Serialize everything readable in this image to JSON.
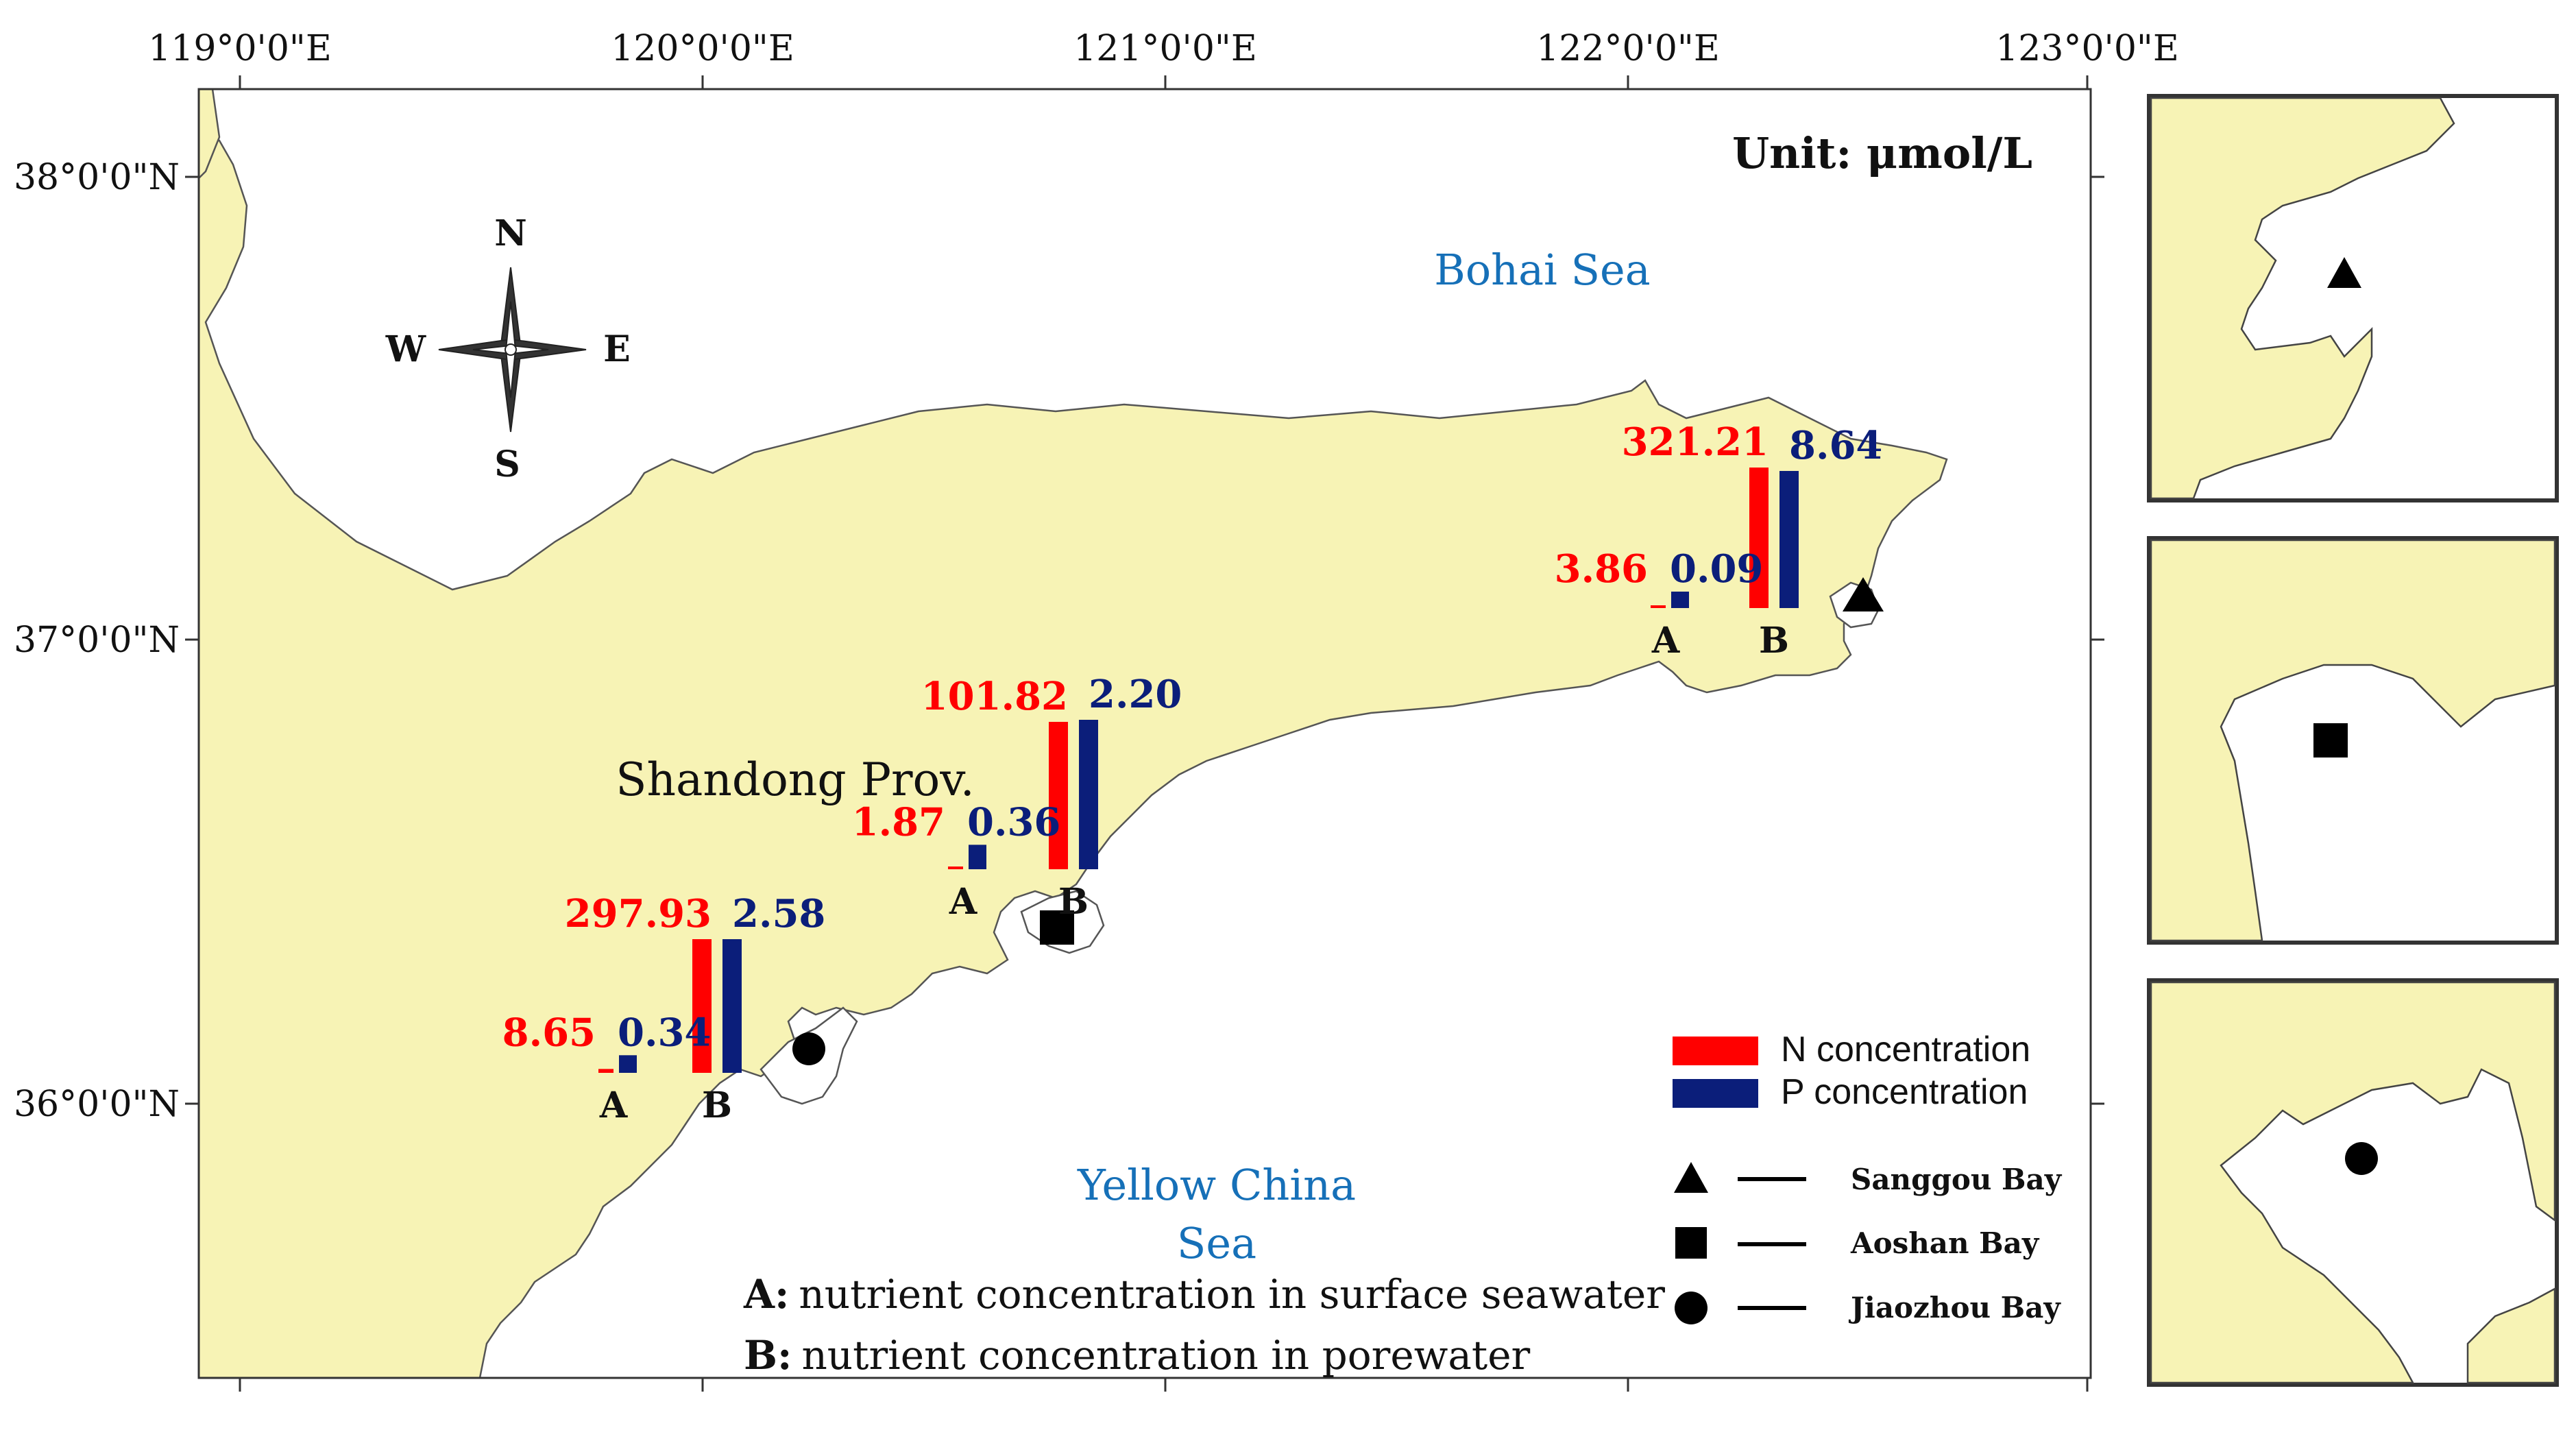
{
  "longitude_labels": [
    "119°0'0\"E",
    "120°0'0\"E",
    "121°0'0\"E",
    "122°0'0\"E",
    "123°0'0\"E"
  ],
  "latitude_labels": [
    "38°0'0\"N",
    "37°0'0\"N",
    "36°0'0\"N"
  ],
  "unit_label": "Unit: μmol/L",
  "compass": {
    "n": "N",
    "s": "S",
    "e": "E",
    "w": "W"
  },
  "place_labels": {
    "bohai_sea": "Bohai Sea",
    "shandong": "Shandong Prov.",
    "yellow_sea_line1": "Yellow China",
    "yellow_sea_line2": "Sea"
  },
  "colors": {
    "land": "#f7f3b5",
    "n_bar": "#ff0000",
    "p_bar": "#0b1e7a",
    "water_label": "#1670b8",
    "n_text": "#ff0000",
    "p_text": "#0b1e7a"
  },
  "legend": {
    "n_concentration": "N concentration",
    "p_concentration": "P concentration",
    "sites": [
      {
        "symbol": "triangle",
        "name": "Sanggou Bay"
      },
      {
        "symbol": "square",
        "name": "Aoshan Bay"
      },
      {
        "symbol": "circle",
        "name": "Jiaozhou Bay"
      }
    ]
  },
  "notes": {
    "a_key": "A:",
    "a_text": "nutrient concentration in surface seawater",
    "b_key": "B:",
    "b_text": "nutrient concentration in porewater"
  },
  "chart_data": {
    "type": "bar",
    "categories": [
      "A",
      "B"
    ],
    "sites": [
      {
        "site": "Jiaozhou Bay",
        "symbol": "circle",
        "N": [
          8.65,
          297.93
        ],
        "P": [
          0.34,
          2.58
        ],
        "N_labels": [
          "8.65",
          "297.93"
        ],
        "P_labels": [
          "0.34",
          "2.58"
        ]
      },
      {
        "site": "Aoshan Bay",
        "symbol": "square",
        "N": [
          1.87,
          101.82
        ],
        "P": [
          0.36,
          2.2
        ],
        "N_labels": [
          "1.87",
          "101.82"
        ],
        "P_labels": [
          "0.36",
          "2.20"
        ]
      },
      {
        "site": "Sanggou Bay",
        "symbol": "triangle",
        "N": [
          3.86,
          321.21
        ],
        "P": [
          0.09,
          8.64
        ],
        "N_labels": [
          "3.86",
          "321.21"
        ],
        "P_labels": [
          "0.09",
          "8.64"
        ]
      }
    ]
  }
}
